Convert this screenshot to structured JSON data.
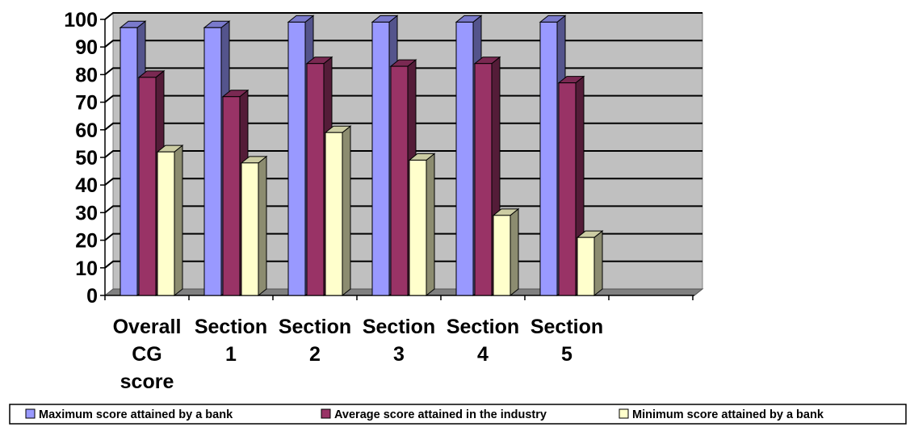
{
  "chart_data": {
    "type": "bar",
    "categories": [
      [
        "Overall",
        "CG",
        "score"
      ],
      [
        "Section",
        "1"
      ],
      [
        "Section",
        "2"
      ],
      [
        "Section",
        "3"
      ],
      [
        "Section",
        "4"
      ],
      [
        "Section",
        "5"
      ]
    ],
    "series": [
      {
        "name": "Maximum score attained by a bank",
        "values": [
          97,
          97,
          99,
          99,
          99,
          99
        ],
        "color": "#9999FF"
      },
      {
        "name": "Average score attained in the industry",
        "values": [
          79,
          72,
          84,
          83,
          84,
          77
        ],
        "color": "#993366"
      },
      {
        "name": "Minimum score attained by a bank",
        "values": [
          52,
          48,
          59,
          49,
          29,
          21
        ],
        "color": "#FFFFCC"
      }
    ],
    "ylim": [
      0,
      100
    ],
    "yticks": [
      "0",
      "10",
      "20",
      "30",
      "40",
      "50",
      "60",
      "70",
      "80",
      "90",
      "100"
    ],
    "grid": true,
    "legend_position": "bottom",
    "style": "3d-clustered-column"
  }
}
